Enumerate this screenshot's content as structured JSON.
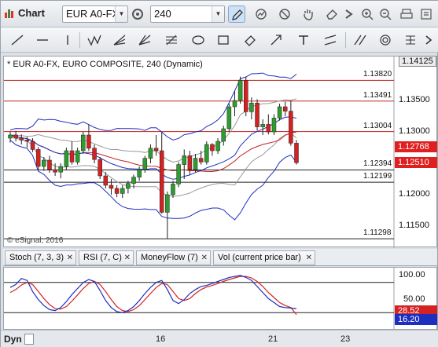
{
  "titlebar": {
    "title": "Chart",
    "symbol": "EUR A0-FX",
    "interval": "240"
  },
  "chart": {
    "title": "* EUR A0-FX, EURO COMPOSITE, 240 (Dynamic)",
    "watermark": "© eSignal, 2016",
    "levels": [
      "1.13820",
      "1.13491",
      "1.13004",
      "1.12394",
      "1.12199",
      "1.11298"
    ],
    "price_axis": [
      "1.14125",
      "1.13500",
      "1.13000",
      "1.12500",
      "1.12000",
      "1.11500"
    ],
    "last_price": "1.12768",
    "prev_price": "1.12510",
    "colors": {
      "bull": "#2e9c2e",
      "bear": "#d42222",
      "tag_red": "#e02020"
    }
  },
  "studies": {
    "tabs": [
      "Stoch (7, 3, 3)",
      "RSI (7, C)",
      "MoneyFlow (7)",
      "Vol (current price bar)"
    ],
    "axis": [
      "100.00",
      "50.00"
    ],
    "stoch_k": "28.52",
    "stoch_d": "16.20"
  },
  "dates": {
    "mode": "Dyn",
    "labels": [
      "16",
      "21",
      "23"
    ]
  },
  "chart_data": {
    "type": "candlestick",
    "ylim": [
      1.1115,
      1.142
    ],
    "ohlc": [
      [
        1.129,
        1.13,
        1.1283,
        1.1295
      ],
      [
        1.1295,
        1.1302,
        1.1285,
        1.129
      ],
      [
        1.129,
        1.1296,
        1.128,
        1.1287
      ],
      [
        1.1287,
        1.1292,
        1.1275,
        1.1285
      ],
      [
        1.1285,
        1.129,
        1.1268,
        1.1272
      ],
      [
        1.1272,
        1.1276,
        1.124,
        1.1245
      ],
      [
        1.1245,
        1.126,
        1.1238,
        1.1255
      ],
      [
        1.1255,
        1.1262,
        1.1235,
        1.124
      ],
      [
        1.124,
        1.125,
        1.123,
        1.1236
      ],
      [
        1.1236,
        1.125,
        1.1226,
        1.1245
      ],
      [
        1.1245,
        1.1275,
        1.124,
        1.127
      ],
      [
        1.127,
        1.1285,
        1.1248,
        1.1252
      ],
      [
        1.1252,
        1.1275,
        1.1248,
        1.127
      ],
      [
        1.127,
        1.13,
        1.1265,
        1.1295
      ],
      [
        1.1295,
        1.1312,
        1.127,
        1.1274
      ],
      [
        1.1274,
        1.128,
        1.125,
        1.1256
      ],
      [
        1.1256,
        1.126,
        1.1225,
        1.123
      ],
      [
        1.123,
        1.1236,
        1.121,
        1.1215
      ],
      [
        1.1215,
        1.1225,
        1.12,
        1.121
      ],
      [
        1.121,
        1.1215,
        1.1196,
        1.1202
      ],
      [
        1.1202,
        1.1215,
        1.1195,
        1.121
      ],
      [
        1.121,
        1.1222,
        1.1202,
        1.1218
      ],
      [
        1.1218,
        1.1232,
        1.121,
        1.1228
      ],
      [
        1.1228,
        1.1245,
        1.1222,
        1.124
      ],
      [
        1.124,
        1.1262,
        1.1235,
        1.1258
      ],
      [
        1.1258,
        1.128,
        1.125,
        1.1274
      ],
      [
        1.1274,
        1.1295,
        1.1262,
        1.127
      ],
      [
        1.127,
        1.13,
        1.117,
        1.1172
      ],
      [
        1.1172,
        1.1205,
        1.113,
        1.12
      ],
      [
        1.12,
        1.1222,
        1.1195,
        1.1217
      ],
      [
        1.1217,
        1.1252,
        1.1212,
        1.1248
      ],
      [
        1.1248,
        1.1272,
        1.1225,
        1.1262
      ],
      [
        1.1262,
        1.127,
        1.1232,
        1.124
      ],
      [
        1.124,
        1.1265,
        1.1236,
        1.1258
      ],
      [
        1.1258,
        1.127,
        1.1248,
        1.1252
      ],
      [
        1.1252,
        1.1285,
        1.1248,
        1.128
      ],
      [
        1.128,
        1.1282,
        1.1262,
        1.127
      ],
      [
        1.127,
        1.129,
        1.1265,
        1.1285
      ],
      [
        1.1285,
        1.131,
        1.1278,
        1.1305
      ],
      [
        1.1305,
        1.1345,
        1.13,
        1.134
      ],
      [
        1.134,
        1.1365,
        1.1325,
        1.135
      ],
      [
        1.135,
        1.1388,
        1.1345,
        1.1382
      ],
      [
        1.1382,
        1.1388,
        1.1325,
        1.1332
      ],
      [
        1.1332,
        1.1355,
        1.132,
        1.1346
      ],
      [
        1.1346,
        1.1352,
        1.1302,
        1.1308
      ],
      [
        1.1308,
        1.132,
        1.1295,
        1.1312
      ],
      [
        1.1312,
        1.1328,
        1.1296,
        1.13
      ],
      [
        1.13,
        1.1328,
        1.1295,
        1.1322
      ],
      [
        1.1322,
        1.1345,
        1.1318,
        1.134
      ],
      [
        1.134,
        1.1348,
        1.1325,
        1.1333
      ],
      [
        1.1333,
        1.135,
        1.1278,
        1.1282
      ],
      [
        1.1282,
        1.1287,
        1.1248,
        1.1251
      ]
    ],
    "stoch": [
      [
        70,
        60
      ],
      [
        76,
        66
      ],
      [
        88,
        75
      ],
      [
        84,
        80
      ],
      [
        62,
        76
      ],
      [
        46,
        62
      ],
      [
        34,
        48
      ],
      [
        26,
        36
      ],
      [
        24,
        28
      ],
      [
        30,
        27
      ],
      [
        42,
        32
      ],
      [
        56,
        43
      ],
      [
        68,
        55
      ],
      [
        80,
        68
      ],
      [
        86,
        78
      ],
      [
        82,
        82
      ],
      [
        64,
        76
      ],
      [
        44,
        62
      ],
      [
        30,
        46
      ],
      [
        22,
        32
      ],
      [
        20,
        24
      ],
      [
        24,
        22
      ],
      [
        32,
        26
      ],
      [
        44,
        34
      ],
      [
        58,
        46
      ],
      [
        70,
        58
      ],
      [
        80,
        70
      ],
      [
        84,
        78
      ],
      [
        66,
        76
      ],
      [
        44,
        62
      ],
      [
        38,
        48
      ],
      [
        46,
        44
      ],
      [
        58,
        48
      ],
      [
        66,
        58
      ],
      [
        72,
        66
      ],
      [
        74,
        71
      ],
      [
        78,
        74
      ],
      [
        82,
        78
      ],
      [
        86,
        82
      ],
      [
        90,
        86
      ],
      [
        92,
        89
      ],
      [
        94,
        92
      ],
      [
        90,
        92
      ],
      [
        84,
        89
      ],
      [
        72,
        82
      ],
      [
        60,
        72
      ],
      [
        48,
        60
      ],
      [
        40,
        50
      ],
      [
        32,
        40
      ],
      [
        30,
        34
      ],
      [
        29,
        30
      ],
      [
        28,
        16
      ]
    ]
  }
}
